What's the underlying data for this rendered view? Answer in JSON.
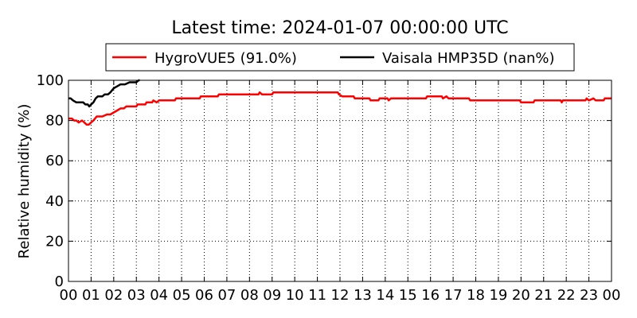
{
  "chart_data": {
    "type": "line",
    "title": "Latest time: 2024-01-07 00:00:00 UTC",
    "xlabel": "",
    "ylabel": "Relative humidity (%)",
    "xlim": [
      0,
      24
    ],
    "ylim": [
      0,
      100
    ],
    "yticks": [
      0,
      20,
      40,
      60,
      80,
      100
    ],
    "xtick_labels": [
      "00",
      "01",
      "02",
      "03",
      "04",
      "05",
      "06",
      "07",
      "08",
      "09",
      "10",
      "11",
      "12",
      "13",
      "14",
      "15",
      "16",
      "17",
      "18",
      "19",
      "20",
      "21",
      "22",
      "23",
      "00"
    ],
    "grid": true,
    "legend_position": "top",
    "series": [
      {
        "name": "HygroVUE5 (91.0%)",
        "color": "#ff0000",
        "points": [
          [
            0.0,
            81
          ],
          [
            0.15,
            81
          ],
          [
            0.25,
            80
          ],
          [
            0.35,
            80
          ],
          [
            0.45,
            79
          ],
          [
            0.6,
            80
          ],
          [
            0.7,
            79
          ],
          [
            0.8,
            78
          ],
          [
            0.9,
            78
          ],
          [
            1.0,
            79
          ],
          [
            1.1,
            80
          ],
          [
            1.25,
            82
          ],
          [
            1.5,
            82
          ],
          [
            1.7,
            83
          ],
          [
            1.85,
            83
          ],
          [
            2.0,
            84
          ],
          [
            2.15,
            85
          ],
          [
            2.3,
            86
          ],
          [
            2.45,
            86
          ],
          [
            2.55,
            87
          ],
          [
            3.0,
            87
          ],
          [
            3.05,
            88
          ],
          [
            3.4,
            88
          ],
          [
            3.45,
            89
          ],
          [
            3.7,
            89
          ],
          [
            3.75,
            90
          ],
          [
            3.9,
            89
          ],
          [
            4.0,
            90
          ],
          [
            4.7,
            90
          ],
          [
            4.75,
            91
          ],
          [
            5.0,
            91
          ],
          [
            5.8,
            91
          ],
          [
            5.85,
            92
          ],
          [
            6.6,
            92
          ],
          [
            6.65,
            93
          ],
          [
            8.4,
            93
          ],
          [
            8.45,
            94
          ],
          [
            8.55,
            93
          ],
          [
            9.0,
            93
          ],
          [
            9.05,
            94
          ],
          [
            11.9,
            94
          ],
          [
            11.95,
            93
          ],
          [
            12.1,
            92
          ],
          [
            12.6,
            92
          ],
          [
            12.65,
            91
          ],
          [
            13.3,
            91
          ],
          [
            13.35,
            90
          ],
          [
            13.7,
            90
          ],
          [
            13.75,
            91
          ],
          [
            14.1,
            91
          ],
          [
            14.15,
            90
          ],
          [
            14.25,
            91
          ],
          [
            15.8,
            91
          ],
          [
            15.85,
            92
          ],
          [
            16.5,
            92
          ],
          [
            16.55,
            91
          ],
          [
            16.7,
            92
          ],
          [
            16.8,
            91
          ],
          [
            17.7,
            91
          ],
          [
            17.75,
            90
          ],
          [
            19.95,
            90
          ],
          [
            20.0,
            89
          ],
          [
            20.55,
            89
          ],
          [
            20.6,
            90
          ],
          [
            21.75,
            90
          ],
          [
            21.8,
            89
          ],
          [
            21.85,
            90
          ],
          [
            22.85,
            90
          ],
          [
            22.9,
            91
          ],
          [
            23.0,
            90
          ],
          [
            23.2,
            91
          ],
          [
            23.3,
            90
          ],
          [
            23.65,
            90
          ],
          [
            23.7,
            91
          ],
          [
            24.0,
            91
          ]
        ]
      },
      {
        "name": "Vaisala HMP35D (nan%)",
        "color": "#000000",
        "points": [
          [
            0.0,
            91
          ],
          [
            0.1,
            91
          ],
          [
            0.2,
            90
          ],
          [
            0.35,
            89
          ],
          [
            0.5,
            89
          ],
          [
            0.65,
            89
          ],
          [
            0.75,
            88
          ],
          [
            0.85,
            88
          ],
          [
            0.92,
            87
          ],
          [
            1.0,
            88
          ],
          [
            1.1,
            89
          ],
          [
            1.2,
            91
          ],
          [
            1.3,
            92
          ],
          [
            1.5,
            92
          ],
          [
            1.6,
            93
          ],
          [
            1.75,
            93
          ],
          [
            1.85,
            94
          ],
          [
            2.0,
            96
          ],
          [
            2.15,
            97
          ],
          [
            2.3,
            98
          ],
          [
            2.5,
            98
          ],
          [
            2.7,
            99
          ],
          [
            3.0,
            99
          ],
          [
            3.1,
            100
          ],
          [
            3.15,
            100
          ]
        ]
      }
    ]
  }
}
